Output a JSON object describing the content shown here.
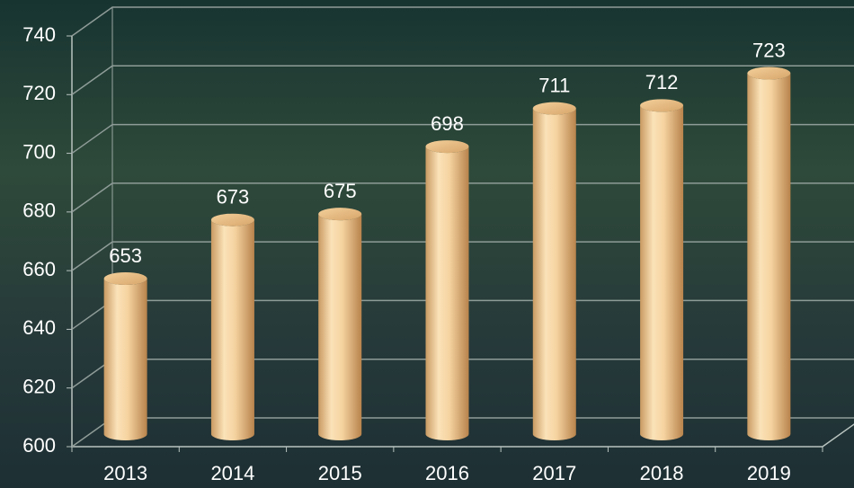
{
  "chart_data": {
    "type": "bar",
    "categories": [
      "2013",
      "2014",
      "2015",
      "2016",
      "2017",
      "2018",
      "2019"
    ],
    "values": [
      653,
      673,
      675,
      698,
      711,
      712,
      723
    ],
    "color": "#f2c98e",
    "ylim": [
      600,
      740
    ],
    "yticks": [
      600,
      620,
      640,
      660,
      680,
      700,
      720,
      740
    ],
    "grid": true
  }
}
